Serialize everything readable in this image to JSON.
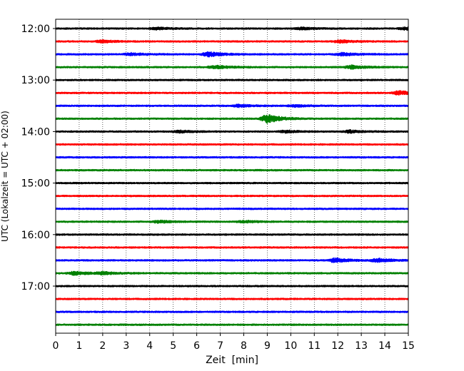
{
  "chart_data": {
    "type": "line",
    "title": "",
    "xlabel": "Zeit  [min]",
    "ylabel": "UTC (Lokalzeit = UTC + 02:00)",
    "xlim": [
      0,
      15
    ],
    "x_ticks": [
      0,
      1,
      2,
      3,
      4,
      5,
      6,
      7,
      8,
      9,
      10,
      11,
      12,
      13,
      14,
      15
    ],
    "x_tick_labels": [
      "0",
      "1",
      "2",
      "3",
      "4",
      "5",
      "6",
      "7",
      "8",
      "9",
      "10",
      "11",
      "12",
      "13",
      "14",
      "15"
    ],
    "y_tick_labels": [
      "12:00",
      "13:00",
      "14:00",
      "15:00",
      "16:00",
      "17:00"
    ],
    "x_grid": true,
    "row_interval_minutes": 15,
    "color_cycle": [
      "#000000",
      "#ff0000",
      "#0000ff",
      "#008000"
    ],
    "series": [
      {
        "start": "12:00",
        "events": [
          {
            "t": 4.3,
            "amp": 1.4
          },
          {
            "t": 10.5,
            "amp": 1.3
          },
          {
            "t": 14.9,
            "amp": 1.6
          }
        ]
      },
      {
        "start": "12:15",
        "events": [
          {
            "t": 2.0,
            "amp": 1.5
          },
          {
            "t": 12.1,
            "amp": 1.7
          }
        ]
      },
      {
        "start": "12:30",
        "events": [
          {
            "t": 3.2,
            "amp": 1.6
          },
          {
            "t": 6.5,
            "amp": 3.0
          },
          {
            "t": 12.2,
            "amp": 2.0
          }
        ]
      },
      {
        "start": "12:45",
        "events": [
          {
            "t": 6.8,
            "amp": 2.2
          },
          {
            "t": 12.6,
            "amp": 2.3
          }
        ]
      },
      {
        "start": "13:00",
        "events": []
      },
      {
        "start": "13:15",
        "events": [
          {
            "t": 14.6,
            "amp": 2.5
          }
        ]
      },
      {
        "start": "13:30",
        "events": [
          {
            "t": 7.8,
            "amp": 1.6
          },
          {
            "t": 10.2,
            "amp": 1.3
          }
        ]
      },
      {
        "start": "13:45",
        "events": [
          {
            "t": 9.0,
            "amp": 5.5
          }
        ]
      },
      {
        "start": "14:00",
        "events": [
          {
            "t": 5.3,
            "amp": 1.5
          },
          {
            "t": 9.8,
            "amp": 1.5
          },
          {
            "t": 12.5,
            "amp": 1.7
          }
        ]
      },
      {
        "start": "14:15",
        "events": []
      },
      {
        "start": "14:30",
        "events": []
      },
      {
        "start": "14:45",
        "events": []
      },
      {
        "start": "15:00",
        "events": []
      },
      {
        "start": "15:15",
        "events": []
      },
      {
        "start": "15:30",
        "events": []
      },
      {
        "start": "15:45",
        "events": [
          {
            "t": 4.4,
            "amp": 1.7
          },
          {
            "t": 8.0,
            "amp": 1.2
          }
        ]
      },
      {
        "start": "16:00",
        "events": []
      },
      {
        "start": "16:15",
        "events": []
      },
      {
        "start": "16:30",
        "events": [
          {
            "t": 11.9,
            "amp": 3.0
          },
          {
            "t": 13.7,
            "amp": 2.5
          }
        ]
      },
      {
        "start": "16:45",
        "events": [
          {
            "t": 0.8,
            "amp": 2.3
          },
          {
            "t": 2.0,
            "amp": 1.5
          }
        ]
      },
      {
        "start": "17:00",
        "events": []
      },
      {
        "start": "17:15",
        "events": []
      },
      {
        "start": "17:30",
        "events": []
      },
      {
        "start": "17:45",
        "events": []
      }
    ]
  }
}
